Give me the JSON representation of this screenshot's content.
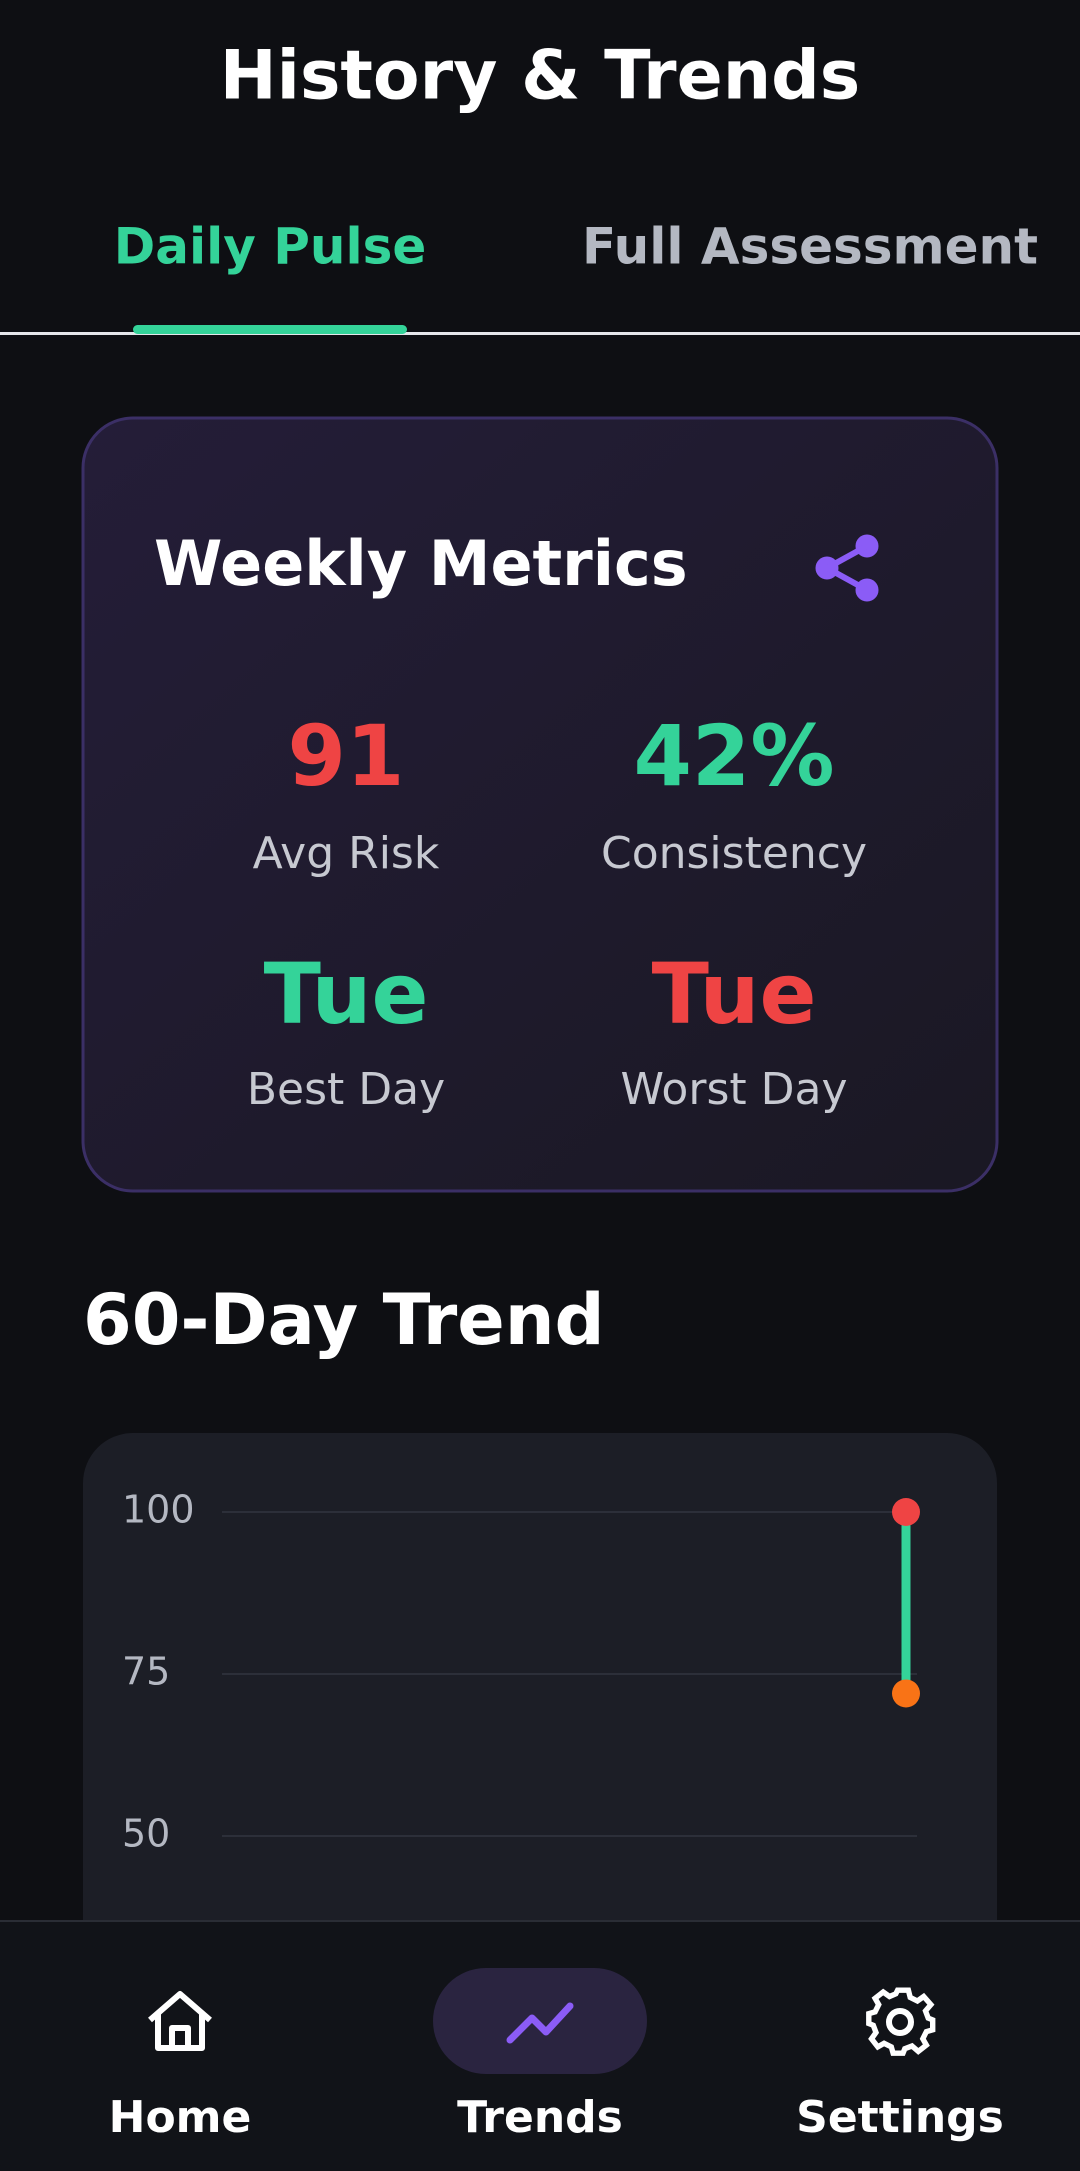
{
  "header": {
    "title": "History & Trends"
  },
  "tabs": [
    {
      "label": "Daily Pulse",
      "active": true
    },
    {
      "label": "Full Assessment",
      "active": false
    }
  ],
  "weekly_metrics": {
    "title": "Weekly Metrics",
    "metrics": [
      {
        "value": 91,
        "label": "Avg Risk",
        "color": "#ef4444"
      },
      {
        "value": "42%",
        "label": "Consistency",
        "color": "#34d399"
      },
      {
        "value": "Tue",
        "label": "Best Day",
        "color": "#34d399"
      },
      {
        "value": "Tue",
        "label": "Worst Day",
        "color": "#ef4444"
      }
    ]
  },
  "chart_data": {
    "type": "range",
    "title": "60-Day Trend",
    "series": [
      {
        "color": "#ef4444",
        "values": [
          100
        ]
      },
      {
        "color": "#f97316",
        "values": [
          72
        ]
      }
    ],
    "range_color": "#34d399",
    "ylim": [
      0,
      100
    ],
    "yticks": [
      50,
      75,
      100
    ],
    "grid": true
  },
  "nav": {
    "items": [
      {
        "label": "Home",
        "active": false
      },
      {
        "label": "Trends",
        "active": true
      },
      {
        "label": "Settings",
        "active": false
      }
    ]
  }
}
